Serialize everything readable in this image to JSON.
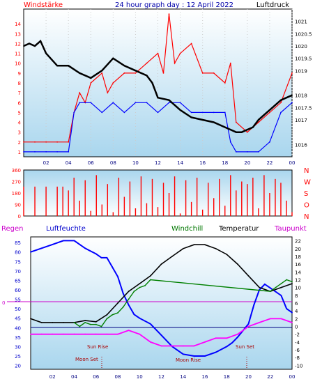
{
  "chart_data": [
    {
      "type": "line",
      "title": "24 hour graph day : 12 April 2022",
      "left_label": "Windstärke",
      "right_label": "Luftdruck",
      "x_ticks": [
        "02",
        "04",
        "06",
        "08",
        "10",
        "12",
        "14",
        "16",
        "18",
        "20",
        "22",
        "00"
      ],
      "y_left_ticks": [
        "1",
        "2",
        "3",
        "4",
        "5",
        "6",
        "7",
        "8",
        "9",
        "10",
        "11",
        "12",
        "13",
        "14"
      ],
      "y_right_ticks": [
        "1016",
        "1017",
        "1017.5",
        "1018",
        "1019",
        "1019.5",
        "1020",
        "1020.5",
        "1021"
      ],
      "series": [
        {
          "name": "Windstärke",
          "color": "#ff0000",
          "x": [
            0,
            1,
            2,
            3,
            4,
            4.5,
            5,
            5.5,
            6,
            7,
            7.5,
            8,
            9,
            10,
            11,
            12,
            12.5,
            13,
            13.5,
            14,
            15,
            16,
            17,
            18,
            18.5,
            19,
            20,
            21,
            22,
            23,
            24
          ],
          "y": [
            2,
            2,
            2,
            2,
            2,
            5,
            7,
            6,
            8,
            9,
            7,
            8,
            9,
            9,
            10,
            11,
            9,
            15,
            10,
            11,
            12,
            9,
            9,
            8,
            10,
            4,
            3,
            4,
            5,
            6,
            9
          ]
        },
        {
          "name": "Windstärke (min)",
          "color": "#0000ff",
          "x": [
            0,
            1,
            2,
            3,
            4,
            4.5,
            5,
            6,
            7,
            8,
            9,
            10,
            11,
            12,
            13,
            14,
            15,
            16,
            17,
            18,
            18.5,
            19,
            20,
            21,
            22,
            23,
            24
          ],
          "y": [
            1,
            1,
            1,
            1,
            1,
            5,
            6,
            6,
            5,
            6,
            5,
            6,
            6,
            5,
            6,
            6,
            5,
            5,
            5,
            5,
            2,
            1,
            1,
            1,
            2,
            5,
            6
          ]
        },
        {
          "name": "Luftdruck",
          "color": "#000000",
          "x": [
            0,
            0.5,
            1,
            1.5,
            2,
            3,
            4,
            5,
            6,
            7,
            8,
            9,
            10,
            11,
            11.5,
            12,
            13,
            14,
            15,
            16,
            17,
            18,
            18.5,
            19,
            19.5,
            20,
            20.5,
            21,
            22,
            23,
            24
          ],
          "y": [
            1020,
            1020.1,
            1020,
            1020.2,
            1019.7,
            1019.2,
            1019.2,
            1018.9,
            1018.7,
            1019.0,
            1019.5,
            1019.2,
            1019.0,
            1018.8,
            1018.5,
            1017.9,
            1017.8,
            1017.4,
            1017.1,
            1017.0,
            1016.9,
            1016.7,
            1016.6,
            1016.5,
            1016.5,
            1016.6,
            1016.7,
            1017.0,
            1017.4,
            1017.8,
            1018.0
          ]
        }
      ]
    },
    {
      "type": "scatter",
      "right_labels": [
        "N",
        "W",
        "S",
        "O",
        "N"
      ],
      "y_ticks": [
        "0",
        "90",
        "180",
        "270",
        "360"
      ],
      "series": [
        {
          "name": "Windrichtung",
          "color": "#ff0000",
          "x": [
            0,
            1,
            2,
            3,
            3.5,
            4,
            4.5,
            5,
            5.5,
            6,
            6.5,
            7,
            7.5,
            8,
            8.5,
            9,
            9.5,
            10,
            10.5,
            11,
            11.5,
            12,
            12.5,
            13,
            13.5,
            14,
            14.5,
            15,
            15.5,
            16,
            16.5,
            17,
            17.5,
            18,
            18.5,
            19,
            19.5,
            20,
            20.5,
            21,
            21.5,
            22,
            22.5,
            23,
            23.5,
            24
          ],
          "y": [
            230,
            230,
            230,
            230,
            230,
            200,
            300,
            120,
            280,
            40,
            320,
            90,
            250,
            30,
            300,
            150,
            270,
            60,
            310,
            100,
            290,
            70,
            260,
            180,
            310,
            20,
            280,
            110,
            300,
            50,
            260,
            140,
            290,
            80,
            320,
            200,
            270,
            250,
            300,
            60,
            320,
            180,
            290,
            260,
            120,
            30
          ]
        }
      ]
    },
    {
      "type": "line",
      "left_labels": [
        "Regen",
        "Luftfeuchte"
      ],
      "top_labels": [
        "Windchill",
        "Temperatur",
        "Taupunkt"
      ],
      "y_left_ticks": [
        "20",
        "25",
        "30",
        "35",
        "40",
        "45",
        "50",
        "55",
        "60",
        "65",
        "70",
        "75",
        "80",
        "85"
      ],
      "y_right_ticks": [
        "-10",
        "-8",
        "-6",
        "-4",
        "-2",
        "0",
        "2",
        "4",
        "6",
        "8",
        "10",
        "12",
        "14",
        "16",
        "18",
        "20",
        "22"
      ],
      "x_ticks": [
        "02",
        "04",
        "06",
        "08",
        "10",
        "12",
        "14",
        "16",
        "18",
        "20",
        "22",
        "00"
      ],
      "rain_label": "0",
      "annotations": [
        "Sun Rise",
        "Moon Set",
        "Moon Rise",
        "Sun Set"
      ],
      "series": [
        {
          "name": "Luftfeuchte",
          "color": "#0000ff",
          "x": [
            0,
            1,
            2,
            3,
            4,
            5,
            6,
            6.5,
            7,
            7.5,
            8,
            8.5,
            9,
            9.5,
            10,
            11,
            12,
            13,
            14,
            15,
            16,
            17,
            18,
            18.5,
            19,
            20,
            20.5,
            21,
            21.5,
            22,
            23,
            23.5,
            24
          ],
          "y": [
            80,
            82,
            84,
            86,
            86,
            82,
            79,
            77,
            77,
            72,
            67,
            58,
            52,
            47,
            45,
            42,
            36,
            30,
            26,
            25,
            25,
            27,
            30,
            32,
            35,
            42,
            52,
            60,
            63,
            61,
            57,
            50,
            48
          ]
        },
        {
          "name": "Temperatur",
          "color": "#000000",
          "x": [
            0,
            1,
            2,
            3,
            4,
            5,
            6,
            7,
            8,
            9,
            10,
            11,
            12,
            13,
            14,
            15,
            16,
            17,
            18,
            19,
            20,
            21,
            22,
            23,
            24
          ],
          "y": [
            2,
            1,
            1,
            1,
            1,
            1.5,
            1.2,
            3,
            6,
            9,
            11,
            13,
            16,
            18,
            20,
            21,
            21,
            20,
            18.5,
            16,
            13,
            10,
            9,
            10,
            11
          ]
        },
        {
          "name": "Windchill",
          "color": "#008000",
          "x": [
            4,
            4.5,
            5,
            5.5,
            6,
            6.5,
            7,
            7.5,
            8,
            8.5,
            9,
            9.5,
            10,
            10.5,
            11,
            22,
            22.5,
            23,
            23.5,
            24
          ],
          "y": [
            1,
            0,
            1,
            0.5,
            0.5,
            0,
            2,
            3,
            3.5,
            5,
            7,
            9,
            10,
            10.5,
            12,
            9,
            10,
            11,
            12,
            11.5
          ]
        },
        {
          "name": "Taupunkt",
          "color": "#ff00ff",
          "x": [
            0,
            1,
            2,
            3,
            4,
            5,
            6,
            7,
            8,
            9,
            10,
            11,
            12,
            13,
            14,
            15,
            16,
            17,
            18,
            19,
            20,
            21,
            22,
            23,
            24
          ],
          "y": [
            -2,
            -2,
            -2,
            -2,
            -2,
            -2,
            -2,
            -2,
            -2,
            -1,
            -2,
            -4,
            -5,
            -5,
            -5,
            -5,
            -4,
            -3,
            -3,
            -2,
            0,
            1,
            2,
            2,
            1
          ]
        }
      ]
    }
  ]
}
